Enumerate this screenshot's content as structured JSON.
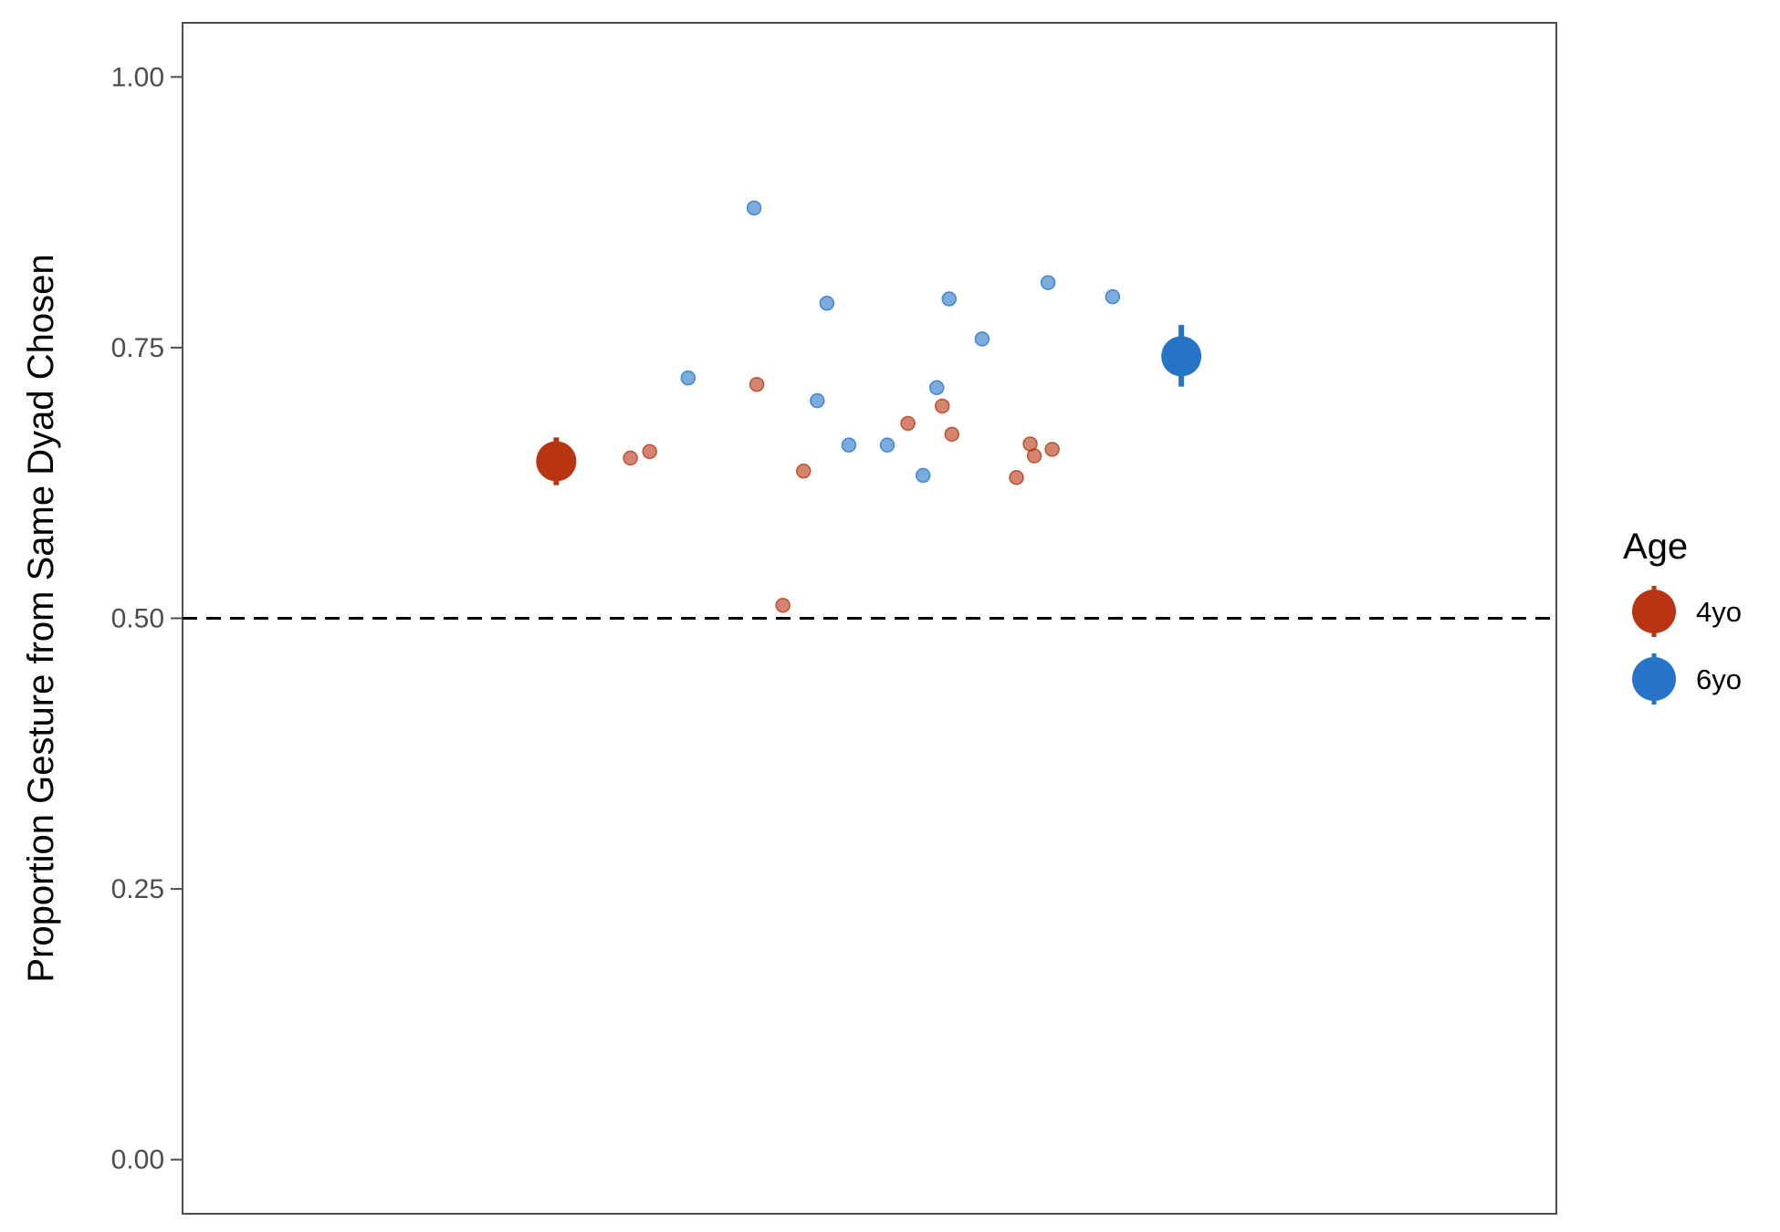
{
  "chart_data": {
    "type": "scatter",
    "title": "",
    "xlabel": "",
    "ylabel": "Proportion Gesture from Same Dyad Chosen",
    "ylim": [
      -0.05,
      1.05
    ],
    "yticks": [
      0.0,
      0.25,
      0.5,
      0.75,
      1.0
    ],
    "ytick_labels": [
      "0.00",
      "0.25",
      "0.50",
      "0.75",
      "1.00"
    ],
    "grid": false,
    "reference_line": {
      "y": 0.5,
      "style": "dashed",
      "color": "#000000"
    },
    "legend": {
      "title": "Age",
      "position": "right"
    },
    "series": [
      {
        "name": "4yo",
        "color": "#B83413",
        "mean": {
          "x": 0.272,
          "y": 0.645,
          "ymin": 0.623,
          "ymax": 0.667
        },
        "points": [
          {
            "x": 0.326,
            "y": 0.648
          },
          {
            "x": 0.34,
            "y": 0.654
          },
          {
            "x": 0.418,
            "y": 0.716
          },
          {
            "x": 0.452,
            "y": 0.636
          },
          {
            "x": 0.437,
            "y": 0.512
          },
          {
            "x": 0.528,
            "y": 0.68
          },
          {
            "x": 0.553,
            "y": 0.696
          },
          {
            "x": 0.56,
            "y": 0.67
          },
          {
            "x": 0.607,
            "y": 0.63
          },
          {
            "x": 0.617,
            "y": 0.661
          },
          {
            "x": 0.62,
            "y": 0.65
          },
          {
            "x": 0.633,
            "y": 0.656
          }
        ]
      },
      {
        "name": "6yo",
        "color": "#2574C8",
        "mean": {
          "x": 0.727,
          "y": 0.742,
          "ymin": 0.714,
          "ymax": 0.771
        },
        "points": [
          {
            "x": 0.416,
            "y": 0.879
          },
          {
            "x": 0.469,
            "y": 0.791
          },
          {
            "x": 0.368,
            "y": 0.722
          },
          {
            "x": 0.462,
            "y": 0.701
          },
          {
            "x": 0.485,
            "y": 0.66
          },
          {
            "x": 0.513,
            "y": 0.66
          },
          {
            "x": 0.539,
            "y": 0.632
          },
          {
            "x": 0.549,
            "y": 0.713
          },
          {
            "x": 0.558,
            "y": 0.795
          },
          {
            "x": 0.582,
            "y": 0.758
          },
          {
            "x": 0.63,
            "y": 0.81
          },
          {
            "x": 0.677,
            "y": 0.797
          }
        ]
      }
    ]
  }
}
